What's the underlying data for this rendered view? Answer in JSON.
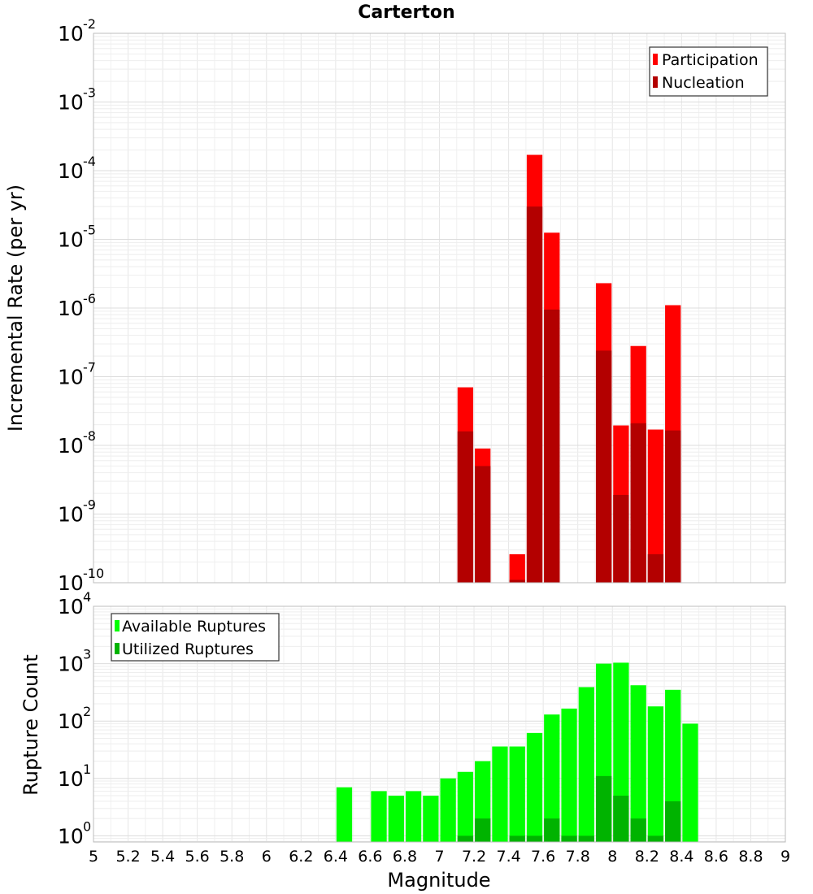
{
  "chart_data": [
    {
      "type": "bar",
      "title": "Carterton",
      "xlabel": "",
      "ylabel": "Incremental Rate (per yr)",
      "y_scale": "log",
      "ylim": [
        1e-10,
        0.01
      ],
      "xlim": [
        5,
        9
      ],
      "bar_width": 0.1,
      "grid": true,
      "legend_position": "top-right",
      "y_tick_exponents": [
        "-2",
        "-3",
        "-4",
        "-5",
        "-6",
        "-7",
        "-8",
        "-9",
        "-10"
      ],
      "y_tick_base": "10",
      "series": [
        {
          "name": "Participation",
          "color": "#ff0000",
          "x": [
            7.15,
            7.25,
            7.45,
            7.55,
            7.65,
            7.95,
            8.05,
            8.15,
            8.25,
            8.35
          ],
          "values": [
            7e-08,
            9e-09,
            2.6e-10,
            0.00017,
            1.25e-05,
            2.3e-06,
            1.95e-08,
            2.8e-07,
            1.7e-08,
            1.1e-06
          ]
        },
        {
          "name": "Nucleation",
          "color": "#b30000",
          "x": [
            7.15,
            7.25,
            7.45,
            7.55,
            7.65,
            7.95,
            8.05,
            8.15,
            8.25,
            8.35
          ],
          "values": [
            1.6e-08,
            5e-09,
            1.1e-10,
            3e-05,
            9.5e-07,
            2.4e-07,
            1.9e-09,
            2.1e-08,
            2.6e-10,
            1.65e-08
          ]
        }
      ]
    },
    {
      "type": "bar",
      "title": "",
      "xlabel": "Magnitude",
      "ylabel": "Rupture Count",
      "y_scale": "log",
      "ylim": [
        0.78,
        10000
      ],
      "xlim": [
        5,
        9
      ],
      "bar_width": 0.1,
      "grid": true,
      "legend_position": "top-left",
      "x_ticks": [
        "5",
        "5.2",
        "5.4",
        "5.6",
        "5.8",
        "6",
        "6.2",
        "6.4",
        "6.6",
        "6.8",
        "7",
        "7.2",
        "7.4",
        "7.6",
        "7.8",
        "8",
        "8.2",
        "8.4",
        "8.6",
        "8.8",
        "9"
      ],
      "y_tick_exponents": [
        "4",
        "3",
        "2",
        "1",
        "0"
      ],
      "y_tick_base": "10",
      "series": [
        {
          "name": "Available Ruptures",
          "color": "#00ff00",
          "x": [
            6.45,
            6.65,
            6.75,
            6.85,
            6.95,
            7.05,
            7.15,
            7.25,
            7.35,
            7.45,
            7.55,
            7.65,
            7.75,
            7.85,
            7.95,
            8.05,
            8.15,
            8.25,
            8.35,
            8.45
          ],
          "values": [
            7,
            6,
            5,
            6,
            5,
            10,
            13,
            20,
            36,
            36,
            62,
            130,
            165,
            390,
            1000,
            1040,
            420,
            180,
            350,
            90
          ]
        },
        {
          "name": "Utilized Ruptures",
          "color": "#00b300",
          "x": [
            7.15,
            7.25,
            7.45,
            7.55,
            7.65,
            7.75,
            7.85,
            7.95,
            8.05,
            8.15,
            8.25,
            8.35
          ],
          "values": [
            1,
            2,
            1,
            1,
            2,
            1,
            1,
            11,
            5,
            2,
            1,
            4
          ]
        }
      ]
    }
  ]
}
